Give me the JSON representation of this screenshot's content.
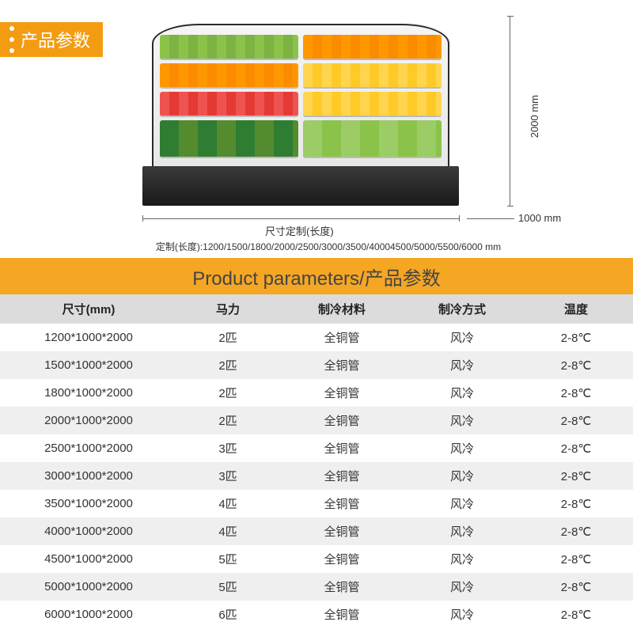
{
  "badge_label": "产品参数",
  "diagram": {
    "height_label": "2000 mm",
    "depth_label": "1000 mm",
    "length_label": "尺寸定制(长度)",
    "custom_note": "定制(长度):1200/1500/1800/2000/2500/3000/3500/40004500/5000/5500/6000  mm"
  },
  "table_title": "Product parameters/产品参数",
  "colors": {
    "accent": "#f39c12",
    "title_bar": "#f5a623",
    "header_bg": "#dcdcdc",
    "alt_row": "#efefef",
    "text": "#333333"
  },
  "columns": [
    "尺寸(mm)",
    "马力",
    "制冷材料",
    "制冷方式",
    "温度"
  ],
  "rows": [
    [
      "1200*1000*2000",
      "2匹",
      "全铜管",
      "风冷",
      "2-8℃"
    ],
    [
      "1500*1000*2000",
      "2匹",
      "全铜管",
      "风冷",
      "2-8℃"
    ],
    [
      "1800*1000*2000",
      "2匹",
      "全铜管",
      "风冷",
      "2-8℃"
    ],
    [
      "2000*1000*2000",
      "2匹",
      "全铜管",
      "风冷",
      "2-8℃"
    ],
    [
      "2500*1000*2000",
      "3匹",
      "全铜管",
      "风冷",
      "2-8℃"
    ],
    [
      "3000*1000*2000",
      "3匹",
      "全铜管",
      "风冷",
      "2-8℃"
    ],
    [
      "3500*1000*2000",
      "4匹",
      "全铜管",
      "风冷",
      "2-8℃"
    ],
    [
      "4000*1000*2000",
      "4匹",
      "全铜管",
      "风冷",
      "2-8℃"
    ],
    [
      "4500*1000*2000",
      "5匹",
      "全铜管",
      "风冷",
      "2-8℃"
    ],
    [
      "5000*1000*2000",
      "5匹",
      "全铜管",
      "风冷",
      "2-8℃"
    ],
    [
      "6000*1000*2000",
      "6匹",
      "全铜管",
      "风冷",
      "2-8℃"
    ]
  ],
  "alt_row_indices": [
    1,
    3,
    5,
    7,
    9
  ]
}
